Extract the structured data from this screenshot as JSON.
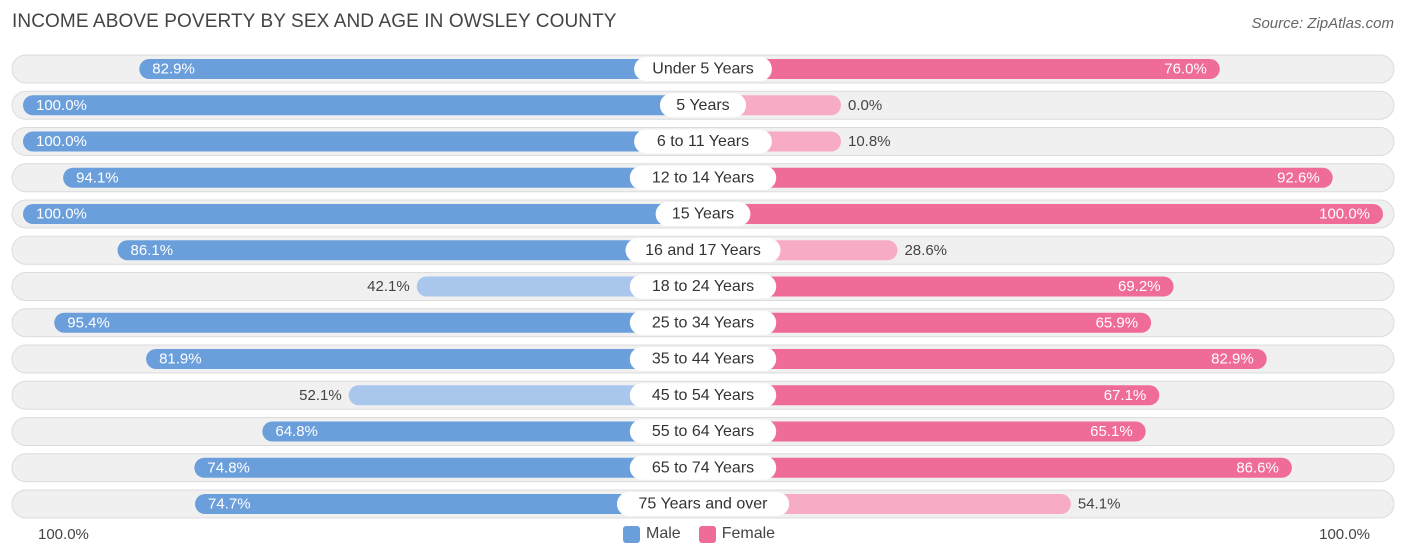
{
  "title": "INCOME ABOVE POVERTY BY SEX AND AGE IN OWSLEY COUNTY",
  "source": "Source: ZipAtlas.com",
  "colors": {
    "male_strong": "#6a9fdc",
    "male_light": "#a9c6ec",
    "female_strong": "#f06c98",
    "female_light": "#f7abc4",
    "row_bg": "#f0f0f0",
    "row_border": "#dcdcdc"
  },
  "chart_data": {
    "type": "bar",
    "orientation": "horizontal-diverging",
    "title": "INCOME ABOVE POVERTY BY SEX AND AGE IN OWSLEY COUNTY",
    "categories": [
      "Under 5 Years",
      "5 Years",
      "6 to 11 Years",
      "12 to 14 Years",
      "15 Years",
      "16 and 17 Years",
      "18 to 24 Years",
      "25 to 34 Years",
      "35 to 44 Years",
      "45 to 54 Years",
      "55 to 64 Years",
      "65 to 74 Years",
      "75 Years and over"
    ],
    "series": [
      {
        "name": "Male",
        "values": [
          82.9,
          100.0,
          100.0,
          94.1,
          100.0,
          86.1,
          42.1,
          95.4,
          81.9,
          52.1,
          64.8,
          74.8,
          74.7
        ],
        "labels": [
          "82.9%",
          "100.0%",
          "100.0%",
          "94.1%",
          "100.0%",
          "86.1%",
          "42.1%",
          "95.4%",
          "81.9%",
          "52.1%",
          "64.8%",
          "74.8%",
          "74.7%"
        ]
      },
      {
        "name": "Female",
        "values": [
          76.0,
          0.0,
          10.8,
          92.6,
          100.0,
          28.6,
          69.2,
          65.9,
          82.9,
          67.1,
          65.1,
          86.6,
          54.1
        ],
        "labels": [
          "76.0%",
          "0.0%",
          "10.8%",
          "92.6%",
          "100.0%",
          "28.6%",
          "69.2%",
          "65.9%",
          "82.9%",
          "67.1%",
          "65.1%",
          "86.6%",
          "54.1%"
        ]
      }
    ],
    "xlim": [
      0,
      100
    ],
    "axis_left_label": "100.0%",
    "axis_right_label": "100.0%",
    "legend": [
      "Male",
      "Female"
    ]
  }
}
